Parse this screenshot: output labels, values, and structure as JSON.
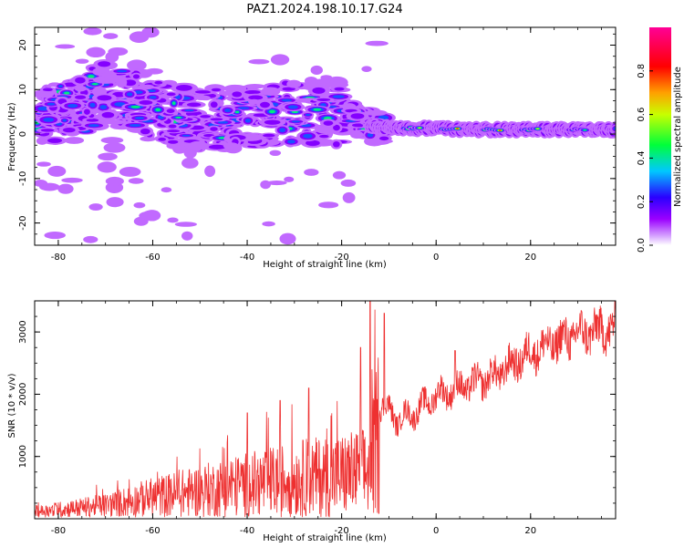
{
  "title": "PAZ1.2024.198.10.17.G24",
  "chart_data": [
    {
      "type": "heatmap",
      "xlabel": "Height of straight line (km)",
      "ylabel": "Frequency (Hz)",
      "xlim": [
        -85,
        38
      ],
      "ylim": [
        -25,
        24
      ],
      "xticks": [
        -80,
        -60,
        -40,
        -20,
        0,
        20
      ],
      "yticks": [
        -20,
        -10,
        0,
        10,
        20
      ],
      "grid": false,
      "colorbar": {
        "label": "Normalized spectral amplitude",
        "range": [
          0.0,
          1.0
        ],
        "ticks": [
          0.0,
          0.2,
          0.4,
          0.6,
          0.8
        ],
        "colors": [
          "#ffffff",
          "#9b00ff",
          "#2a00ff",
          "#00c8ff",
          "#00ff3a",
          "#ffff00",
          "#ff7800",
          "#ff0000",
          "#ff0096"
        ]
      },
      "ridge": {
        "description_points": [
          [
            -83,
            4
          ],
          [
            -70,
            9
          ],
          [
            -60,
            6
          ],
          [
            -50,
            3
          ],
          [
            -40,
            4
          ],
          [
            -30,
            5
          ],
          [
            -20,
            4
          ],
          [
            -12,
            1.5
          ],
          [
            0,
            1.2
          ],
          [
            10,
            1
          ],
          [
            20,
            1
          ],
          [
            38,
            1
          ]
        ],
        "peaks": [
          [
            -5,
            0.6
          ],
          [
            3,
            0.9
          ],
          [
            12,
            0.8
          ],
          [
            20,
            0.75
          ],
          [
            30,
            0.55
          ]
        ]
      }
    },
    {
      "type": "line",
      "xlabel": "Height of straight line (km)",
      "ylabel": "SNR (10 * v/v)",
      "xlim": [
        -85,
        38
      ],
      "ylim": [
        0,
        3500
      ],
      "xticks": [
        -80,
        -60,
        -40,
        -20,
        0,
        20
      ],
      "yticks": [
        1000,
        2000,
        3000
      ],
      "grid": false,
      "line_color": "#ee3030",
      "trend": [
        [
          -85,
          120
        ],
        [
          -70,
          250
        ],
        [
          -60,
          420
        ],
        [
          -50,
          550
        ],
        [
          -40,
          680
        ],
        [
          -30,
          800
        ],
        [
          -20,
          880
        ],
        [
          -14,
          950
        ],
        [
          -12,
          1900
        ],
        [
          -8,
          1600
        ],
        [
          -4,
          1750
        ],
        [
          0,
          2000
        ],
        [
          6,
          2150
        ],
        [
          12,
          2300
        ],
        [
          20,
          2700
        ],
        [
          30,
          3000
        ],
        [
          38,
          3100
        ]
      ],
      "spikes": [
        [
          -14,
          3500
        ],
        [
          -11,
          3300
        ],
        [
          -16,
          2750
        ],
        [
          -27,
          2100
        ],
        [
          -40,
          1700
        ],
        [
          -33,
          1900
        ],
        [
          4,
          2700
        ],
        [
          8,
          2050
        ]
      ]
    }
  ]
}
